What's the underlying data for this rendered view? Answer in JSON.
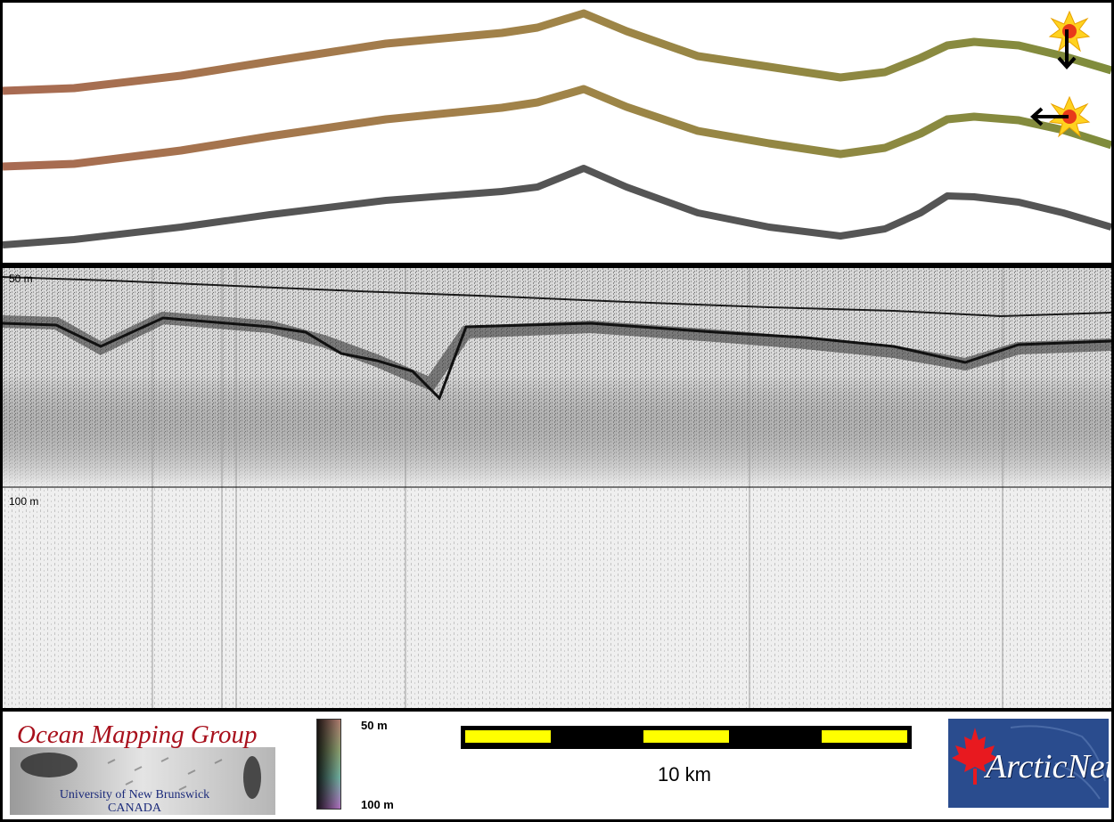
{
  "sonar": {
    "depth_top_label": "50 m",
    "depth_mid_label": "100 m"
  },
  "legend": {
    "org_title": "Ocean Mapping Group",
    "org_university": "University of New Brunswick",
    "org_country": "CANADA",
    "colorbar_top_label": "50 m",
    "colorbar_bottom_label": "100 m",
    "scale_label": "10 km",
    "partner_logo_text": "ArcticNet"
  },
  "icons": {
    "sun_marker": "sun-icon",
    "down_arrow": "arrow-down-icon",
    "left_arrow": "arrow-left-icon"
  },
  "colors": {
    "track_warm": "#a86a52",
    "track_olive": "#8a8c3e",
    "track_gray": "#555555",
    "scale_yellow": "#ffff00",
    "omg_red": "#a8101c",
    "arctic_blue": "#2a4c8e"
  }
}
